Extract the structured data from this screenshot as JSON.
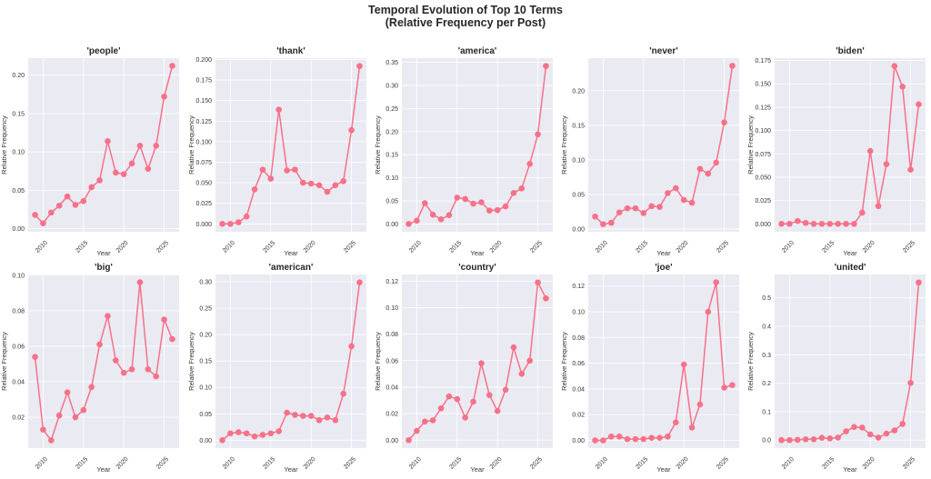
{
  "figure": {
    "title_line1": "Temporal Evolution of Top 10 Terms",
    "title_line2": "(Relative Frequency per Post)",
    "background": "#eaeaf2",
    "line_color": "#f77189",
    "grid_color": "#ffffff"
  },
  "chart_data": [
    {
      "type": "line",
      "title": "'people'",
      "xlabel": "Year",
      "ylabel": "Relative Frequency",
      "x": [
        2009,
        2010,
        2011,
        2012,
        2013,
        2014,
        2015,
        2016,
        2017,
        2018,
        2019,
        2020,
        2021,
        2022,
        2023,
        2024,
        2025,
        2026
      ],
      "values": [
        0.018,
        0.007,
        0.021,
        0.03,
        0.042,
        0.031,
        0.036,
        0.054,
        0.063,
        0.114,
        0.073,
        0.071,
        0.085,
        0.108,
        0.078,
        0.108,
        0.172,
        0.212
      ],
      "ylim": [
        -0.004,
        0.222
      ],
      "yticks": [
        0.0,
        0.05,
        0.1,
        0.15,
        0.2
      ],
      "ytick_labels": [
        "0.00",
        "0.05",
        "0.10",
        "0.15",
        "0.20"
      ],
      "xticks": [
        2010,
        2015,
        2020,
        2025
      ],
      "grid": true
    },
    {
      "type": "line",
      "title": "'thank'",
      "xlabel": "Year",
      "ylabel": "Relative Frequency",
      "x": [
        2009,
        2010,
        2011,
        2012,
        2013,
        2014,
        2015,
        2016,
        2017,
        2018,
        2019,
        2020,
        2021,
        2022,
        2023,
        2024,
        2025,
        2026
      ],
      "values": [
        0.0,
        0.0,
        0.002,
        0.009,
        0.042,
        0.066,
        0.055,
        0.139,
        0.065,
        0.066,
        0.05,
        0.049,
        0.047,
        0.039,
        0.047,
        0.052,
        0.114,
        0.192
      ],
      "ylim": [
        -0.0096,
        0.2016
      ],
      "yticks": [
        0.0,
        0.025,
        0.05,
        0.075,
        0.1,
        0.125,
        0.15,
        0.175,
        0.2
      ],
      "ytick_labels": [
        "0.000",
        "0.025",
        "0.050",
        "0.075",
        "0.100",
        "0.125",
        "0.150",
        "0.175",
        "0.200"
      ],
      "xticks": [
        2010,
        2015,
        2020,
        2025
      ],
      "grid": true
    },
    {
      "type": "line",
      "title": "'america'",
      "xlabel": "Year",
      "ylabel": "Relative Frequency",
      "x": [
        2009,
        2010,
        2011,
        2012,
        2013,
        2014,
        2015,
        2016,
        2017,
        2018,
        2019,
        2020,
        2021,
        2022,
        2023,
        2024,
        2025,
        2026
      ],
      "values": [
        0.0,
        0.007,
        0.045,
        0.02,
        0.01,
        0.019,
        0.057,
        0.054,
        0.044,
        0.047,
        0.029,
        0.03,
        0.038,
        0.067,
        0.077,
        0.13,
        0.194,
        0.342
      ],
      "ylim": [
        -0.017,
        0.359
      ],
      "yticks": [
        0.0,
        0.05,
        0.1,
        0.15,
        0.2,
        0.25,
        0.3,
        0.35
      ],
      "ytick_labels": [
        "0.00",
        "0.05",
        "0.10",
        "0.15",
        "0.20",
        "0.25",
        "0.30",
        "0.35"
      ],
      "xticks": [
        2010,
        2015,
        2020,
        2025
      ],
      "grid": true
    },
    {
      "type": "line",
      "title": "'never'",
      "xlabel": "Year",
      "ylabel": "Relative Frequency",
      "x": [
        2009,
        2010,
        2011,
        2012,
        2013,
        2014,
        2015,
        2016,
        2017,
        2018,
        2019,
        2020,
        2021,
        2022,
        2023,
        2024,
        2025,
        2026
      ],
      "values": [
        0.018,
        0.007,
        0.009,
        0.024,
        0.03,
        0.03,
        0.023,
        0.033,
        0.032,
        0.052,
        0.059,
        0.042,
        0.038,
        0.087,
        0.08,
        0.096,
        0.154,
        0.236
      ],
      "ylim": [
        -0.004,
        0.247
      ],
      "yticks": [
        0.0,
        0.05,
        0.1,
        0.15,
        0.2
      ],
      "ytick_labels": [
        "0.00",
        "0.05",
        "0.10",
        "0.15",
        "0.20"
      ],
      "xticks": [
        2010,
        2015,
        2020,
        2025
      ],
      "grid": true
    },
    {
      "type": "line",
      "title": "'biden'",
      "xlabel": "Year",
      "ylabel": "Relative Frequency",
      "x": [
        2009,
        2010,
        2011,
        2012,
        2013,
        2014,
        2015,
        2016,
        2017,
        2018,
        2019,
        2020,
        2021,
        2022,
        2023,
        2024,
        2025,
        2026
      ],
      "values": [
        0.0,
        0.0,
        0.003,
        0.001,
        0.0,
        0.0,
        0.0,
        0.0,
        0.0,
        0.0,
        0.012,
        0.078,
        0.019,
        0.064,
        0.169,
        0.147,
        0.058,
        0.128
      ],
      "ylim": [
        -0.0085,
        0.1775
      ],
      "yticks": [
        0.0,
        0.025,
        0.05,
        0.075,
        0.1,
        0.125,
        0.15,
        0.175
      ],
      "ytick_labels": [
        "0.000",
        "0.025",
        "0.050",
        "0.075",
        "0.100",
        "0.125",
        "0.150",
        "0.175"
      ],
      "xticks": [
        2010,
        2015,
        2020,
        2025
      ],
      "grid": true
    },
    {
      "type": "line",
      "title": "'big'",
      "xlabel": "Year",
      "ylabel": "Relative Frequency",
      "x": [
        2009,
        2010,
        2011,
        2012,
        2013,
        2014,
        2015,
        2016,
        2017,
        2018,
        2019,
        2020,
        2021,
        2022,
        2023,
        2024,
        2025,
        2026
      ],
      "values": [
        0.054,
        0.013,
        0.007,
        0.021,
        0.034,
        0.02,
        0.024,
        0.037,
        0.061,
        0.077,
        0.052,
        0.045,
        0.047,
        0.096,
        0.047,
        0.043,
        0.075,
        0.064
      ],
      "ylim": [
        0.0026,
        0.1004
      ],
      "yticks": [
        0.02,
        0.04,
        0.06,
        0.08,
        0.1
      ],
      "ytick_labels": [
        "0.02",
        "0.04",
        "0.06",
        "0.08",
        "0.10"
      ],
      "xticks": [
        2010,
        2015,
        2020,
        2025
      ],
      "grid": true
    },
    {
      "type": "line",
      "title": "'american'",
      "xlabel": "Year",
      "ylabel": "Relative Frequency",
      "x": [
        2009,
        2010,
        2011,
        2012,
        2013,
        2014,
        2015,
        2016,
        2017,
        2018,
        2019,
        2020,
        2021,
        2022,
        2023,
        2024,
        2025,
        2026
      ],
      "values": [
        0.0,
        0.013,
        0.015,
        0.013,
        0.007,
        0.01,
        0.013,
        0.017,
        0.052,
        0.048,
        0.046,
        0.046,
        0.038,
        0.043,
        0.038,
        0.088,
        0.178,
        0.299
      ],
      "ylim": [
        -0.015,
        0.314
      ],
      "yticks": [
        0.0,
        0.05,
        0.1,
        0.15,
        0.2,
        0.25,
        0.3
      ],
      "ytick_labels": [
        "0.00",
        "0.05",
        "0.10",
        "0.15",
        "0.20",
        "0.25",
        "0.30"
      ],
      "xticks": [
        2010,
        2015,
        2020,
        2025
      ],
      "grid": true
    },
    {
      "type": "line",
      "title": "'country'",
      "xlabel": "Year",
      "ylabel": "Relative Frequency",
      "x": [
        2009,
        2010,
        2011,
        2012,
        2013,
        2014,
        2015,
        2016,
        2017,
        2018,
        2019,
        2020,
        2021,
        2022,
        2023,
        2024,
        2025,
        2026
      ],
      "values": [
        0.0,
        0.007,
        0.014,
        0.015,
        0.024,
        0.033,
        0.031,
        0.017,
        0.029,
        0.058,
        0.034,
        0.022,
        0.038,
        0.07,
        0.05,
        0.06,
        0.119,
        0.107
      ],
      "ylim": [
        -0.006,
        0.125
      ],
      "yticks": [
        0.0,
        0.02,
        0.04,
        0.06,
        0.08,
        0.1,
        0.12
      ],
      "ytick_labels": [
        "0.00",
        "0.02",
        "0.04",
        "0.06",
        "0.08",
        "0.10",
        "0.12"
      ],
      "xticks": [
        2010,
        2015,
        2020,
        2025
      ],
      "grid": true
    },
    {
      "type": "line",
      "title": "'joe'",
      "xlabel": "Year",
      "ylabel": "Relative Frequency",
      "x": [
        2009,
        2010,
        2011,
        2012,
        2013,
        2014,
        2015,
        2016,
        2017,
        2018,
        2019,
        2020,
        2021,
        2022,
        2023,
        2024,
        2025,
        2026
      ],
      "values": [
        0.0,
        0.0,
        0.003,
        0.003,
        0.001,
        0.001,
        0.001,
        0.002,
        0.002,
        0.003,
        0.014,
        0.059,
        0.01,
        0.028,
        0.1,
        0.123,
        0.041,
        0.043
      ],
      "ylim": [
        -0.006,
        0.129
      ],
      "yticks": [
        0.0,
        0.02,
        0.04,
        0.06,
        0.08,
        0.1,
        0.12
      ],
      "ytick_labels": [
        "0.00",
        "0.02",
        "0.04",
        "0.06",
        "0.08",
        "0.10",
        "0.12"
      ],
      "xticks": [
        2010,
        2015,
        2020,
        2025
      ],
      "grid": true
    },
    {
      "type": "line",
      "title": "'united'",
      "xlabel": "Year",
      "ylabel": "Relative Frequency",
      "x": [
        2009,
        2010,
        2011,
        2012,
        2013,
        2014,
        2015,
        2016,
        2017,
        2018,
        2019,
        2020,
        2021,
        2022,
        2023,
        2024,
        2025,
        2026
      ],
      "values": [
        0.0,
        0.0,
        0.001,
        0.003,
        0.003,
        0.008,
        0.006,
        0.009,
        0.031,
        0.046,
        0.044,
        0.02,
        0.009,
        0.023,
        0.034,
        0.057,
        0.201,
        0.554
      ],
      "ylim": [
        -0.028,
        0.582
      ],
      "yticks": [
        0.0,
        0.1,
        0.2,
        0.3,
        0.4,
        0.5
      ],
      "ytick_labels": [
        "0.0",
        "0.1",
        "0.2",
        "0.3",
        "0.4",
        "0.5"
      ],
      "xticks": [
        2010,
        2015,
        2020,
        2025
      ],
      "grid": true
    }
  ]
}
